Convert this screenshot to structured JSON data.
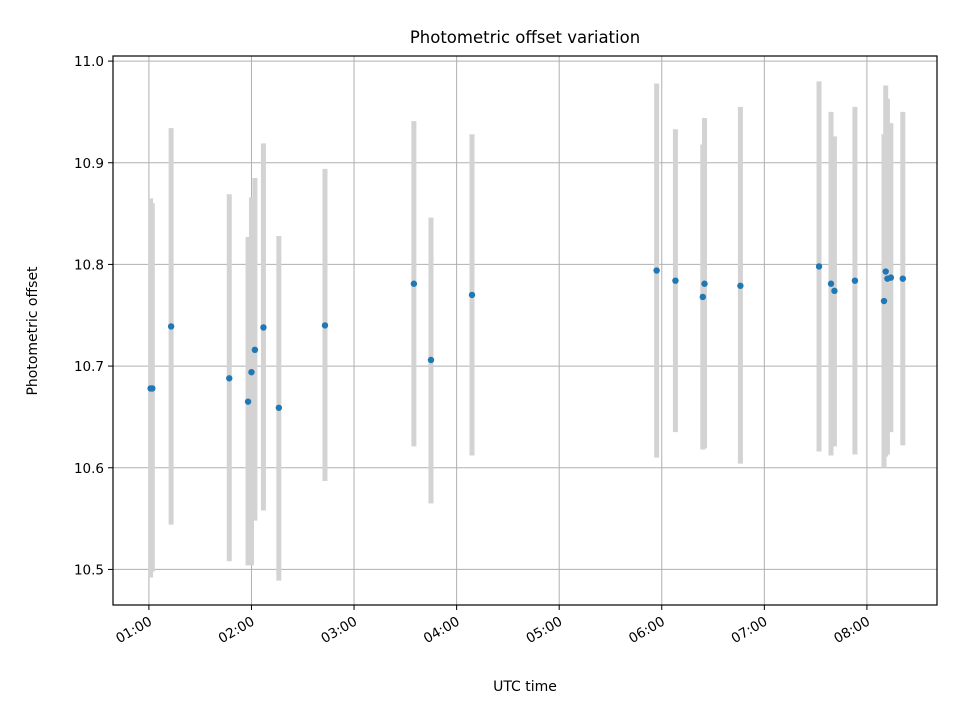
{
  "chart_data": {
    "type": "scatter",
    "title": "Photometric offset variation",
    "xlabel": "UTC time",
    "ylabel": "Photometric offset",
    "x_tick_labels": [
      "01:00",
      "02:00",
      "03:00",
      "04:00",
      "05:00",
      "06:00",
      "07:00",
      "08:00"
    ],
    "x_ticks": [
      "01:00",
      "02:00",
      "03:00",
      "04:00",
      "05:00",
      "06:00",
      "07:00",
      "08:00"
    ],
    "y_tick_labels": [
      "10.5",
      "10.6",
      "10.7",
      "10.8",
      "10.9",
      "11.0"
    ],
    "y_ticks": [
      10.5,
      10.6,
      10.7,
      10.8,
      10.9,
      11.0
    ],
    "xlim": [
      "00:39",
      "08:41"
    ],
    "ylim": [
      10.465,
      11.005
    ],
    "grid": true,
    "colors": {
      "point": "#1f77b4",
      "errorbar": "#d3d3d3",
      "grid": "#b0b0b0",
      "frame": "#000000"
    },
    "points": [
      {
        "x": "01:01",
        "y": 10.678,
        "y_low": 10.492,
        "y_high": 10.865
      },
      {
        "x": "01:02",
        "y": 10.678,
        "y_low": 10.498,
        "y_high": 10.86
      },
      {
        "x": "01:13",
        "y": 10.739,
        "y_low": 10.544,
        "y_high": 10.934
      },
      {
        "x": "01:47",
        "y": 10.688,
        "y_low": 10.508,
        "y_high": 10.869
      },
      {
        "x": "01:58",
        "y": 10.665,
        "y_low": 10.504,
        "y_high": 10.827
      },
      {
        "x": "02:00",
        "y": 10.694,
        "y_low": 10.504,
        "y_high": 10.866
      },
      {
        "x": "02:02",
        "y": 10.716,
        "y_low": 10.548,
        "y_high": 10.885
      },
      {
        "x": "02:07",
        "y": 10.738,
        "y_low": 10.558,
        "y_high": 10.919
      },
      {
        "x": "02:16",
        "y": 10.659,
        "y_low": 10.489,
        "y_high": 10.828
      },
      {
        "x": "02:43",
        "y": 10.74,
        "y_low": 10.587,
        "y_high": 10.894
      },
      {
        "x": "03:35",
        "y": 10.781,
        "y_low": 10.621,
        "y_high": 10.941
      },
      {
        "x": "03:45",
        "y": 10.706,
        "y_low": 10.565,
        "y_high": 10.846
      },
      {
        "x": "04:09",
        "y": 10.77,
        "y_low": 10.612,
        "y_high": 10.928
      },
      {
        "x": "05:57",
        "y": 10.794,
        "y_low": 10.61,
        "y_high": 10.978
      },
      {
        "x": "06:08",
        "y": 10.784,
        "y_low": 10.635,
        "y_high": 10.933
      },
      {
        "x": "06:24",
        "y": 10.768,
        "y_low": 10.618,
        "y_high": 10.918
      },
      {
        "x": "06:25",
        "y": 10.781,
        "y_low": 10.619,
        "y_high": 10.944
      },
      {
        "x": "06:46",
        "y": 10.779,
        "y_low": 10.604,
        "y_high": 10.955
      },
      {
        "x": "07:32",
        "y": 10.798,
        "y_low": 10.616,
        "y_high": 10.98
      },
      {
        "x": "07:39",
        "y": 10.781,
        "y_low": 10.612,
        "y_high": 10.95
      },
      {
        "x": "07:41",
        "y": 10.774,
        "y_low": 10.621,
        "y_high": 10.926
      },
      {
        "x": "07:53",
        "y": 10.784,
        "y_low": 10.613,
        "y_high": 10.955
      },
      {
        "x": "08:10",
        "y": 10.764,
        "y_low": 10.6,
        "y_high": 10.928
      },
      {
        "x": "08:11",
        "y": 10.793,
        "y_low": 10.611,
        "y_high": 10.976
      },
      {
        "x": "08:12",
        "y": 10.786,
        "y_low": 10.613,
        "y_high": 10.963
      },
      {
        "x": "08:14",
        "y": 10.787,
        "y_low": 10.635,
        "y_high": 10.939
      },
      {
        "x": "08:21",
        "y": 10.786,
        "y_low": 10.622,
        "y_high": 10.95
      }
    ]
  }
}
